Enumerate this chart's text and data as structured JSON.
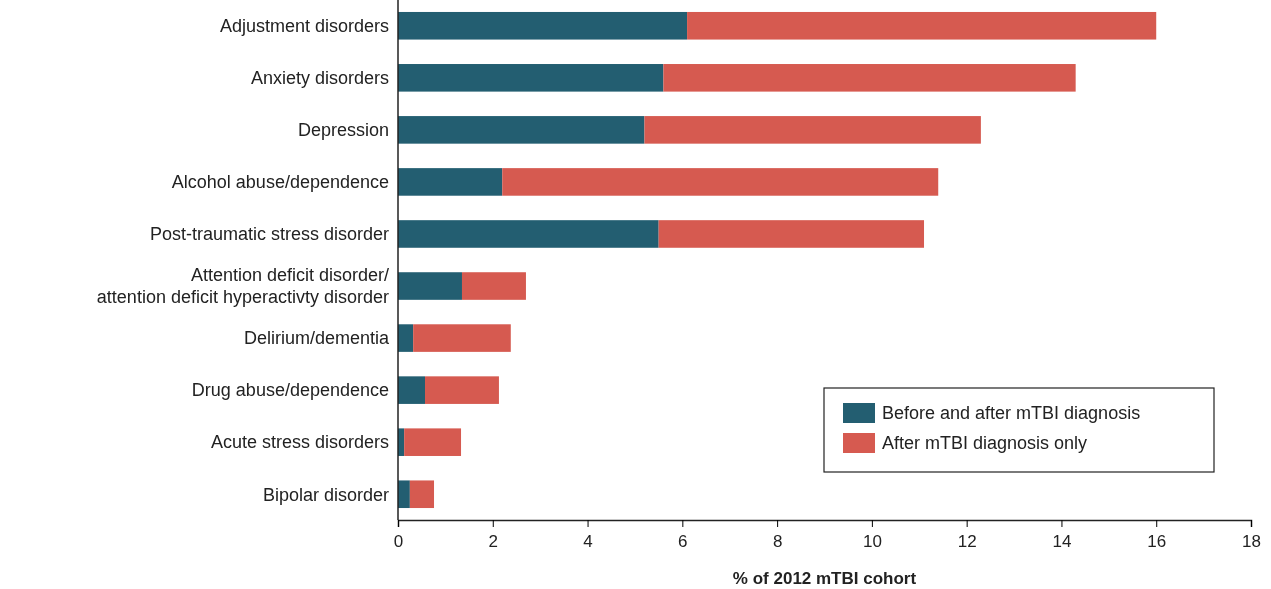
{
  "chart_data": {
    "type": "bar",
    "orientation": "horizontal",
    "stacked": true,
    "xlabel": "% of 2012 mTBI cohort",
    "categories": [
      "Adjustment disorders",
      "Anxiety disorders",
      "Depression",
      "Alcohol abuse/dependence",
      "Post-traumatic stress disorder",
      "Attention deficit disorder/\nattention deficit hyperactivty disorder",
      "Delirium/dementia",
      "Drug abuse/dependence",
      "Acute stress disorders",
      "Bipolar disorder"
    ],
    "series": [
      {
        "name": "Before and after mTBI diagnosis",
        "color": "#235e71",
        "values": [
          6.1,
          5.6,
          5.2,
          2.2,
          5.5,
          1.35,
          0.32,
          0.57,
          0.13,
          0.25
        ]
      },
      {
        "name": "After mTBI diagnosis only",
        "color": "#d65a50",
        "values": [
          9.9,
          8.7,
          7.1,
          9.2,
          5.6,
          1.35,
          2.06,
          1.56,
          1.2,
          0.51
        ]
      }
    ],
    "xlim": [
      0,
      18
    ],
    "xticks": [
      0,
      2,
      4,
      6,
      8,
      10,
      12,
      14,
      16,
      18
    ],
    "grid": false,
    "legend": "bottom right"
  }
}
